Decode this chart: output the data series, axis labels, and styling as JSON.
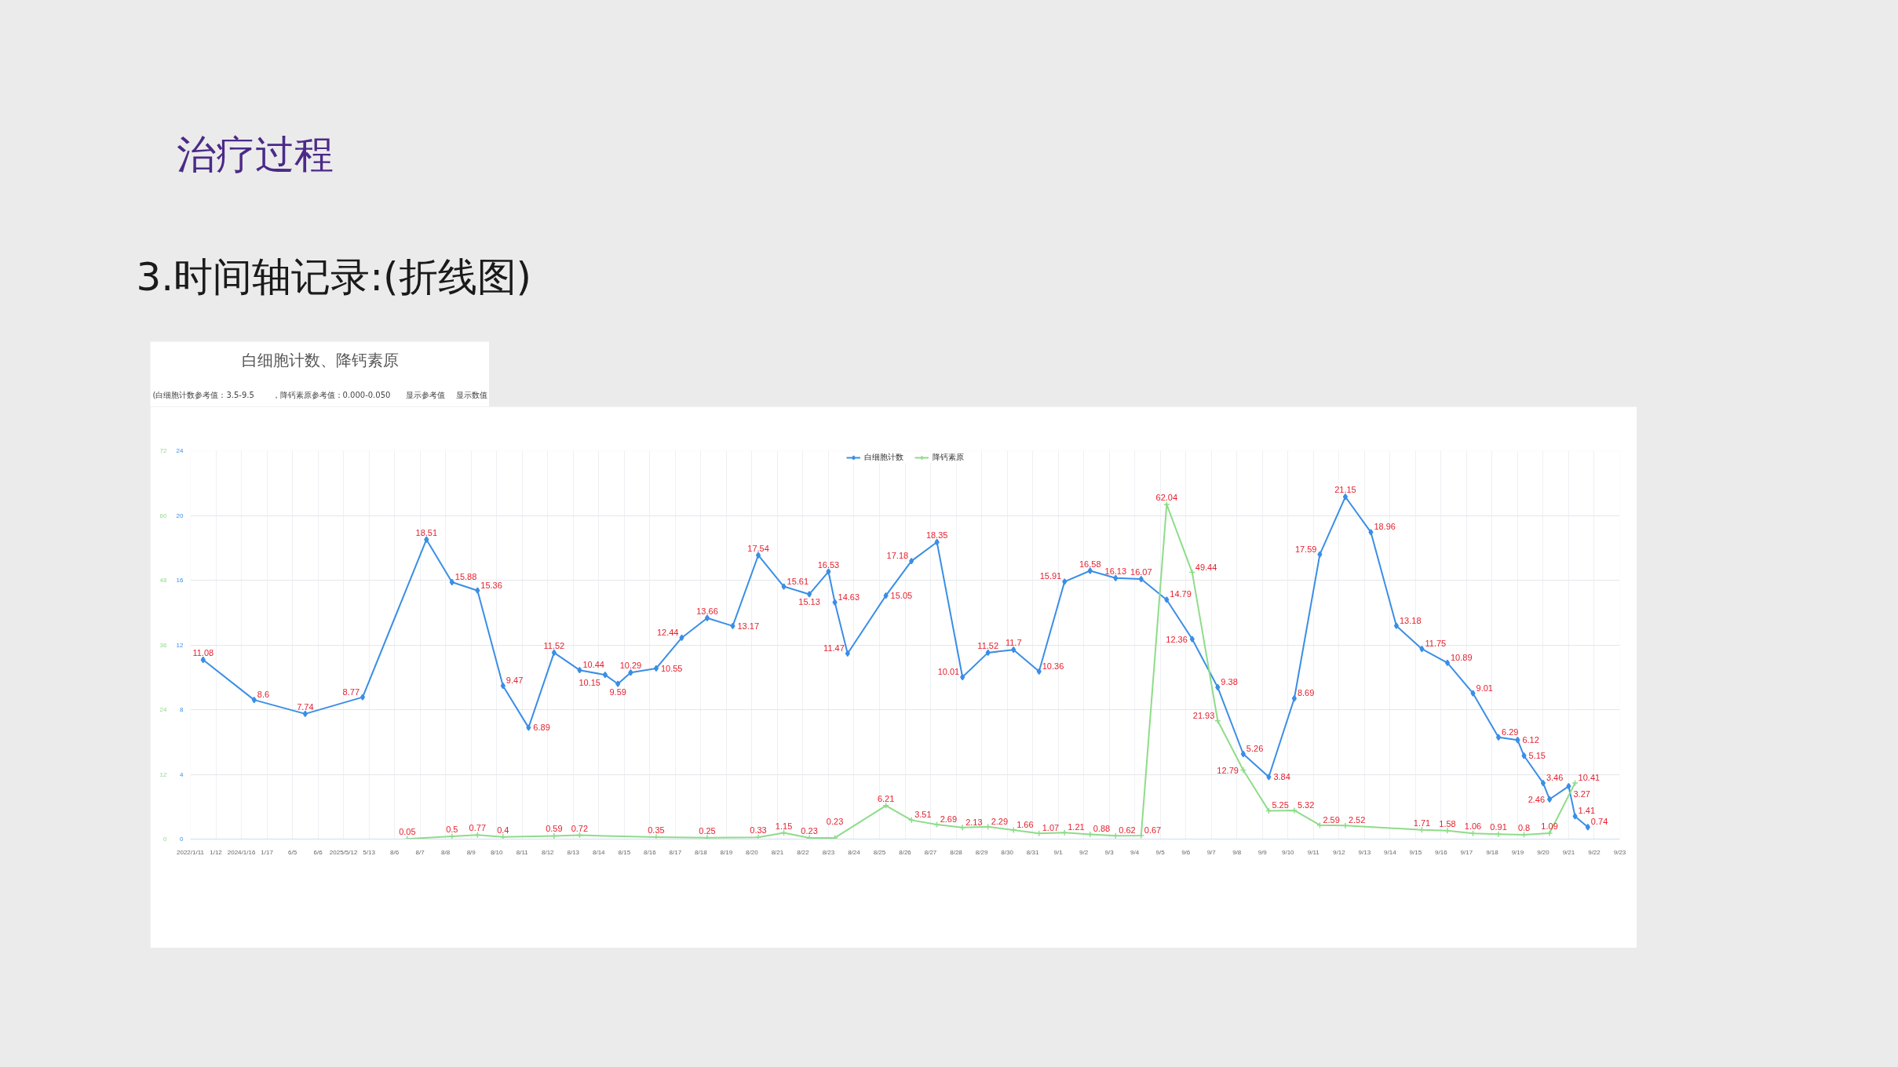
{
  "chart_data": {
    "type": "line",
    "title": "白细胞计数、降钙素原",
    "annotations": [
      "治疗过程",
      "3.时间轴记录:(折线图)",
      "(白细胞计数参考值：3.5-9.5",
      "，降钙素原参考值：0.000-0.050",
      "显示参考值",
      "显示数值"
    ],
    "categories": [
      "2022/1/11",
      null,
      null,
      null,
      "1/12",
      null,
      null,
      null,
      "2024/1/16",
      null,
      null,
      null,
      "1/17",
      null,
      null,
      null,
      "6/5",
      null,
      null,
      null,
      "6/6",
      null,
      null,
      null,
      "2025/5/12",
      null,
      null,
      null,
      "5/13",
      null,
      null,
      null,
      "8/6",
      null,
      null,
      null,
      "8/7",
      null,
      null,
      null,
      "8/8",
      null,
      null,
      null,
      "8/9",
      null,
      null,
      null,
      "8/10",
      null,
      null,
      null,
      "8/11",
      null,
      null,
      null,
      "8/12",
      null,
      null,
      null,
      "8/13",
      null,
      null,
      null,
      "8/14",
      null,
      null,
      null,
      "8/15",
      null,
      null,
      null,
      "8/16",
      null,
      null,
      null,
      "8/17",
      null,
      null,
      null,
      "8/18",
      null,
      null,
      null,
      "8/19",
      null,
      null,
      null,
      "8/20",
      null,
      null,
      null,
      "8/21",
      null,
      null,
      null,
      "8/22",
      null,
      null,
      null,
      "8/23",
      null,
      null,
      null,
      "8/24",
      null,
      null,
      null,
      "8/25",
      null,
      null,
      null,
      "8/26",
      null,
      null,
      null,
      "8/27",
      null,
      null,
      null,
      "8/28",
      null,
      null,
      null,
      "8/29",
      null,
      null,
      null,
      "8/30",
      null,
      null,
      null,
      "8/31",
      null,
      null,
      null,
      "9/1",
      null,
      null,
      null,
      "9/2",
      null,
      null,
      null,
      "9/3",
      null,
      null,
      null,
      "9/4",
      null,
      null,
      null,
      "9/5",
      null,
      null,
      null,
      "9/6",
      null,
      null,
      null,
      "9/7",
      null,
      null,
      null,
      "9/8",
      null,
      null,
      null,
      "9/9",
      null,
      null,
      null,
      "9/10",
      null,
      null,
      null,
      "9/11",
      null,
      null,
      null,
      "9/12",
      null,
      null,
      null,
      "9/13",
      null,
      null,
      null,
      "9/14",
      null,
      null,
      null,
      "9/15",
      null,
      null,
      null,
      "9/16",
      null,
      null,
      null,
      "9/17",
      null,
      null,
      null,
      "9/18",
      null,
      null,
      null,
      "9/19",
      null,
      null,
      null,
      "9/20",
      null,
      null,
      null,
      "9/21",
      null,
      null,
      null,
      "9/22",
      null,
      null,
      null,
      "9/23"
    ],
    "ylim": [
      0,
      24
    ],
    "yticks": [
      0,
      4,
      8,
      12,
      16,
      20,
      24
    ],
    "y2lim": [
      0,
      72
    ],
    "y2ticks": [
      0,
      12,
      24,
      36,
      48,
      60,
      72
    ],
    "grid": true,
    "legend": "top",
    "data_labels": true,
    "line_style": "solid",
    "series": [
      {
        "name": "白细胞计数",
        "color": "#3a8ee6",
        "marker": "diamond",
        "values": [
          null,
          null,
          11.08,
          null,
          null,
          null,
          null,
          null,
          null,
          null,
          8.6,
          null,
          null,
          null,
          null,
          null,
          null,
          null,
          7.74,
          null,
          null,
          null,
          null,
          null,
          null,
          null,
          null,
          8.77,
          null,
          null,
          null,
          null,
          null,
          null,
          null,
          null,
          null,
          18.51,
          null,
          null,
          null,
          15.88,
          null,
          null,
          null,
          15.36,
          null,
          null,
          null,
          9.47,
          null,
          null,
          null,
          6.89,
          null,
          null,
          null,
          11.52,
          null,
          null,
          null,
          10.44,
          null,
          null,
          null,
          10.15,
          null,
          9.59,
          null,
          10.29,
          null,
          null,
          null,
          10.55,
          null,
          null,
          null,
          12.44,
          null,
          null,
          null,
          13.66,
          null,
          null,
          null,
          13.17,
          null,
          null,
          null,
          17.54,
          null,
          null,
          null,
          15.61,
          null,
          null,
          null,
          15.13,
          null,
          null,
          16.53,
          14.63,
          null,
          11.47,
          null,
          null,
          null,
          null,
          null,
          15.05,
          null,
          null,
          null,
          17.18,
          null,
          null,
          null,
          18.35,
          null,
          null,
          null,
          10.01,
          null,
          null,
          null,
          11.52,
          null,
          null,
          null,
          11.7,
          null,
          null,
          null,
          10.36,
          null,
          null,
          null,
          15.91,
          null,
          null,
          null,
          16.58,
          null,
          null,
          null,
          16.13,
          null,
          null,
          null,
          16.07,
          null,
          null,
          null,
          14.79,
          null,
          null,
          null,
          12.36,
          null,
          null,
          null,
          9.38,
          null,
          null,
          null,
          5.26,
          null,
          null,
          null,
          3.84,
          null,
          null,
          null,
          8.69,
          null,
          null,
          null,
          17.59,
          null,
          null,
          null,
          21.15,
          null,
          null,
          null,
          18.96,
          null,
          null,
          null,
          13.18,
          null,
          null,
          null,
          11.75,
          null,
          null,
          null,
          10.89,
          null,
          null,
          null,
          9.01,
          null,
          null,
          null,
          6.29,
          null,
          null,
          6.12,
          5.15,
          null,
          null,
          3.46,
          2.46,
          null,
          null,
          3.27,
          1.41,
          null,
          0.74,
          null,
          null,
          null,
          null,
          null
        ]
      },
      {
        "name": "降钙素原",
        "color": "#8fdc8a",
        "marker": "cross",
        "axis": "y2",
        "values": [
          null,
          null,
          null,
          null,
          null,
          null,
          null,
          null,
          null,
          null,
          null,
          null,
          null,
          null,
          null,
          null,
          null,
          null,
          null,
          null,
          null,
          null,
          null,
          null,
          null,
          null,
          null,
          null,
          null,
          null,
          null,
          null,
          null,
          null,
          0.05,
          null,
          null,
          null,
          null,
          null,
          null,
          0.5,
          null,
          null,
          null,
          0.77,
          null,
          null,
          null,
          0.4,
          null,
          null,
          null,
          null,
          null,
          null,
          null,
          0.59,
          null,
          null,
          null,
          0.72,
          null,
          null,
          null,
          null,
          null,
          null,
          null,
          null,
          null,
          null,
          null,
          0.35,
          null,
          null,
          null,
          null,
          null,
          null,
          null,
          0.25,
          null,
          null,
          null,
          null,
          null,
          null,
          null,
          0.33,
          null,
          null,
          null,
          1.15,
          null,
          null,
          null,
          0.23,
          null,
          null,
          null,
          0.23,
          null,
          null,
          null,
          null,
          null,
          null,
          null,
          6.21,
          null,
          null,
          null,
          3.51,
          null,
          null,
          null,
          2.69,
          null,
          null,
          null,
          2.13,
          null,
          null,
          null,
          2.29,
          null,
          null,
          null,
          1.66,
          null,
          null,
          null,
          1.07,
          null,
          null,
          null,
          1.21,
          null,
          null,
          null,
          0.88,
          null,
          null,
          null,
          0.62,
          null,
          null,
          null,
          0.67,
          null,
          null,
          null,
          62.04,
          null,
          null,
          null,
          49.44,
          null,
          null,
          null,
          21.93,
          null,
          null,
          null,
          12.79,
          null,
          null,
          null,
          5.25,
          null,
          null,
          null,
          5.32,
          null,
          null,
          null,
          2.59,
          null,
          null,
          null,
          2.52,
          null,
          null,
          null,
          null,
          null,
          null,
          null,
          null,
          null,
          null,
          null,
          1.71,
          null,
          null,
          null,
          1.58,
          null,
          null,
          null,
          1.06,
          null,
          null,
          null,
          0.91,
          null,
          null,
          null,
          0.8,
          null,
          null,
          null,
          1.09,
          null,
          null,
          null,
          10.41,
          null,
          null,
          null,
          null,
          null,
          null,
          null
        ]
      }
    ]
  }
}
